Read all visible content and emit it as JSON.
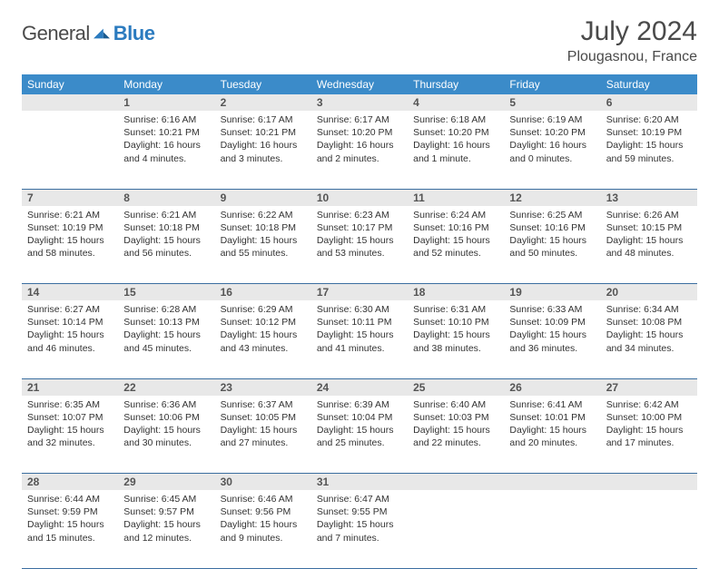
{
  "brand": {
    "word1": "General",
    "word2": "Blue"
  },
  "title": "July 2024",
  "location": "Plougasnou, France",
  "colors": {
    "header_bg": "#3b8bc9",
    "header_text": "#ffffff",
    "daynum_bg": "#e8e8e8",
    "rule": "#3b6ea0",
    "brand_blue": "#2b7bbf",
    "text": "#333333"
  },
  "weekdays": [
    "Sunday",
    "Monday",
    "Tuesday",
    "Wednesday",
    "Thursday",
    "Friday",
    "Saturday"
  ],
  "weeks": [
    [
      {
        "n": "",
        "sr": "",
        "ss": "",
        "dl": ""
      },
      {
        "n": "1",
        "sr": "Sunrise: 6:16 AM",
        "ss": "Sunset: 10:21 PM",
        "dl": "Daylight: 16 hours and 4 minutes."
      },
      {
        "n": "2",
        "sr": "Sunrise: 6:17 AM",
        "ss": "Sunset: 10:21 PM",
        "dl": "Daylight: 16 hours and 3 minutes."
      },
      {
        "n": "3",
        "sr": "Sunrise: 6:17 AM",
        "ss": "Sunset: 10:20 PM",
        "dl": "Daylight: 16 hours and 2 minutes."
      },
      {
        "n": "4",
        "sr": "Sunrise: 6:18 AM",
        "ss": "Sunset: 10:20 PM",
        "dl": "Daylight: 16 hours and 1 minute."
      },
      {
        "n": "5",
        "sr": "Sunrise: 6:19 AM",
        "ss": "Sunset: 10:20 PM",
        "dl": "Daylight: 16 hours and 0 minutes."
      },
      {
        "n": "6",
        "sr": "Sunrise: 6:20 AM",
        "ss": "Sunset: 10:19 PM",
        "dl": "Daylight: 15 hours and 59 minutes."
      }
    ],
    [
      {
        "n": "7",
        "sr": "Sunrise: 6:21 AM",
        "ss": "Sunset: 10:19 PM",
        "dl": "Daylight: 15 hours and 58 minutes."
      },
      {
        "n": "8",
        "sr": "Sunrise: 6:21 AM",
        "ss": "Sunset: 10:18 PM",
        "dl": "Daylight: 15 hours and 56 minutes."
      },
      {
        "n": "9",
        "sr": "Sunrise: 6:22 AM",
        "ss": "Sunset: 10:18 PM",
        "dl": "Daylight: 15 hours and 55 minutes."
      },
      {
        "n": "10",
        "sr": "Sunrise: 6:23 AM",
        "ss": "Sunset: 10:17 PM",
        "dl": "Daylight: 15 hours and 53 minutes."
      },
      {
        "n": "11",
        "sr": "Sunrise: 6:24 AM",
        "ss": "Sunset: 10:16 PM",
        "dl": "Daylight: 15 hours and 52 minutes."
      },
      {
        "n": "12",
        "sr": "Sunrise: 6:25 AM",
        "ss": "Sunset: 10:16 PM",
        "dl": "Daylight: 15 hours and 50 minutes."
      },
      {
        "n": "13",
        "sr": "Sunrise: 6:26 AM",
        "ss": "Sunset: 10:15 PM",
        "dl": "Daylight: 15 hours and 48 minutes."
      }
    ],
    [
      {
        "n": "14",
        "sr": "Sunrise: 6:27 AM",
        "ss": "Sunset: 10:14 PM",
        "dl": "Daylight: 15 hours and 46 minutes."
      },
      {
        "n": "15",
        "sr": "Sunrise: 6:28 AM",
        "ss": "Sunset: 10:13 PM",
        "dl": "Daylight: 15 hours and 45 minutes."
      },
      {
        "n": "16",
        "sr": "Sunrise: 6:29 AM",
        "ss": "Sunset: 10:12 PM",
        "dl": "Daylight: 15 hours and 43 minutes."
      },
      {
        "n": "17",
        "sr": "Sunrise: 6:30 AM",
        "ss": "Sunset: 10:11 PM",
        "dl": "Daylight: 15 hours and 41 minutes."
      },
      {
        "n": "18",
        "sr": "Sunrise: 6:31 AM",
        "ss": "Sunset: 10:10 PM",
        "dl": "Daylight: 15 hours and 38 minutes."
      },
      {
        "n": "19",
        "sr": "Sunrise: 6:33 AM",
        "ss": "Sunset: 10:09 PM",
        "dl": "Daylight: 15 hours and 36 minutes."
      },
      {
        "n": "20",
        "sr": "Sunrise: 6:34 AM",
        "ss": "Sunset: 10:08 PM",
        "dl": "Daylight: 15 hours and 34 minutes."
      }
    ],
    [
      {
        "n": "21",
        "sr": "Sunrise: 6:35 AM",
        "ss": "Sunset: 10:07 PM",
        "dl": "Daylight: 15 hours and 32 minutes."
      },
      {
        "n": "22",
        "sr": "Sunrise: 6:36 AM",
        "ss": "Sunset: 10:06 PM",
        "dl": "Daylight: 15 hours and 30 minutes."
      },
      {
        "n": "23",
        "sr": "Sunrise: 6:37 AM",
        "ss": "Sunset: 10:05 PM",
        "dl": "Daylight: 15 hours and 27 minutes."
      },
      {
        "n": "24",
        "sr": "Sunrise: 6:39 AM",
        "ss": "Sunset: 10:04 PM",
        "dl": "Daylight: 15 hours and 25 minutes."
      },
      {
        "n": "25",
        "sr": "Sunrise: 6:40 AM",
        "ss": "Sunset: 10:03 PM",
        "dl": "Daylight: 15 hours and 22 minutes."
      },
      {
        "n": "26",
        "sr": "Sunrise: 6:41 AM",
        "ss": "Sunset: 10:01 PM",
        "dl": "Daylight: 15 hours and 20 minutes."
      },
      {
        "n": "27",
        "sr": "Sunrise: 6:42 AM",
        "ss": "Sunset: 10:00 PM",
        "dl": "Daylight: 15 hours and 17 minutes."
      }
    ],
    [
      {
        "n": "28",
        "sr": "Sunrise: 6:44 AM",
        "ss": "Sunset: 9:59 PM",
        "dl": "Daylight: 15 hours and 15 minutes."
      },
      {
        "n": "29",
        "sr": "Sunrise: 6:45 AM",
        "ss": "Sunset: 9:57 PM",
        "dl": "Daylight: 15 hours and 12 minutes."
      },
      {
        "n": "30",
        "sr": "Sunrise: 6:46 AM",
        "ss": "Sunset: 9:56 PM",
        "dl": "Daylight: 15 hours and 9 minutes."
      },
      {
        "n": "31",
        "sr": "Sunrise: 6:47 AM",
        "ss": "Sunset: 9:55 PM",
        "dl": "Daylight: 15 hours and 7 minutes."
      },
      {
        "n": "",
        "sr": "",
        "ss": "",
        "dl": ""
      },
      {
        "n": "",
        "sr": "",
        "ss": "",
        "dl": ""
      },
      {
        "n": "",
        "sr": "",
        "ss": "",
        "dl": ""
      }
    ]
  ]
}
